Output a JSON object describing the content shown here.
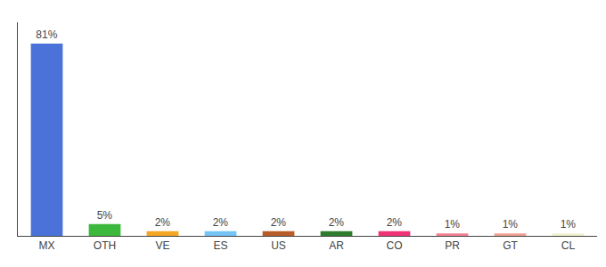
{
  "chart_data": {
    "type": "bar",
    "categories": [
      "MX",
      "OTH",
      "VE",
      "ES",
      "US",
      "AR",
      "CO",
      "PR",
      "GT",
      "CL"
    ],
    "values": [
      81,
      5,
      2,
      2,
      2,
      2,
      2,
      1,
      1,
      1
    ],
    "value_labels": [
      "81%",
      "5%",
      "2%",
      "2%",
      "2%",
      "2%",
      "2%",
      "1%",
      "1%",
      "1%"
    ],
    "colors": [
      "#4a72d9",
      "#3cb83c",
      "#f5a623",
      "#74c5f5",
      "#b85c2a",
      "#2e7d2e",
      "#f03277",
      "#f08090",
      "#f0a090",
      "#f0f0d0"
    ],
    "ylim": [
      0,
      90
    ],
    "data_labels": true,
    "tick_labels": "x",
    "grid": false
  }
}
